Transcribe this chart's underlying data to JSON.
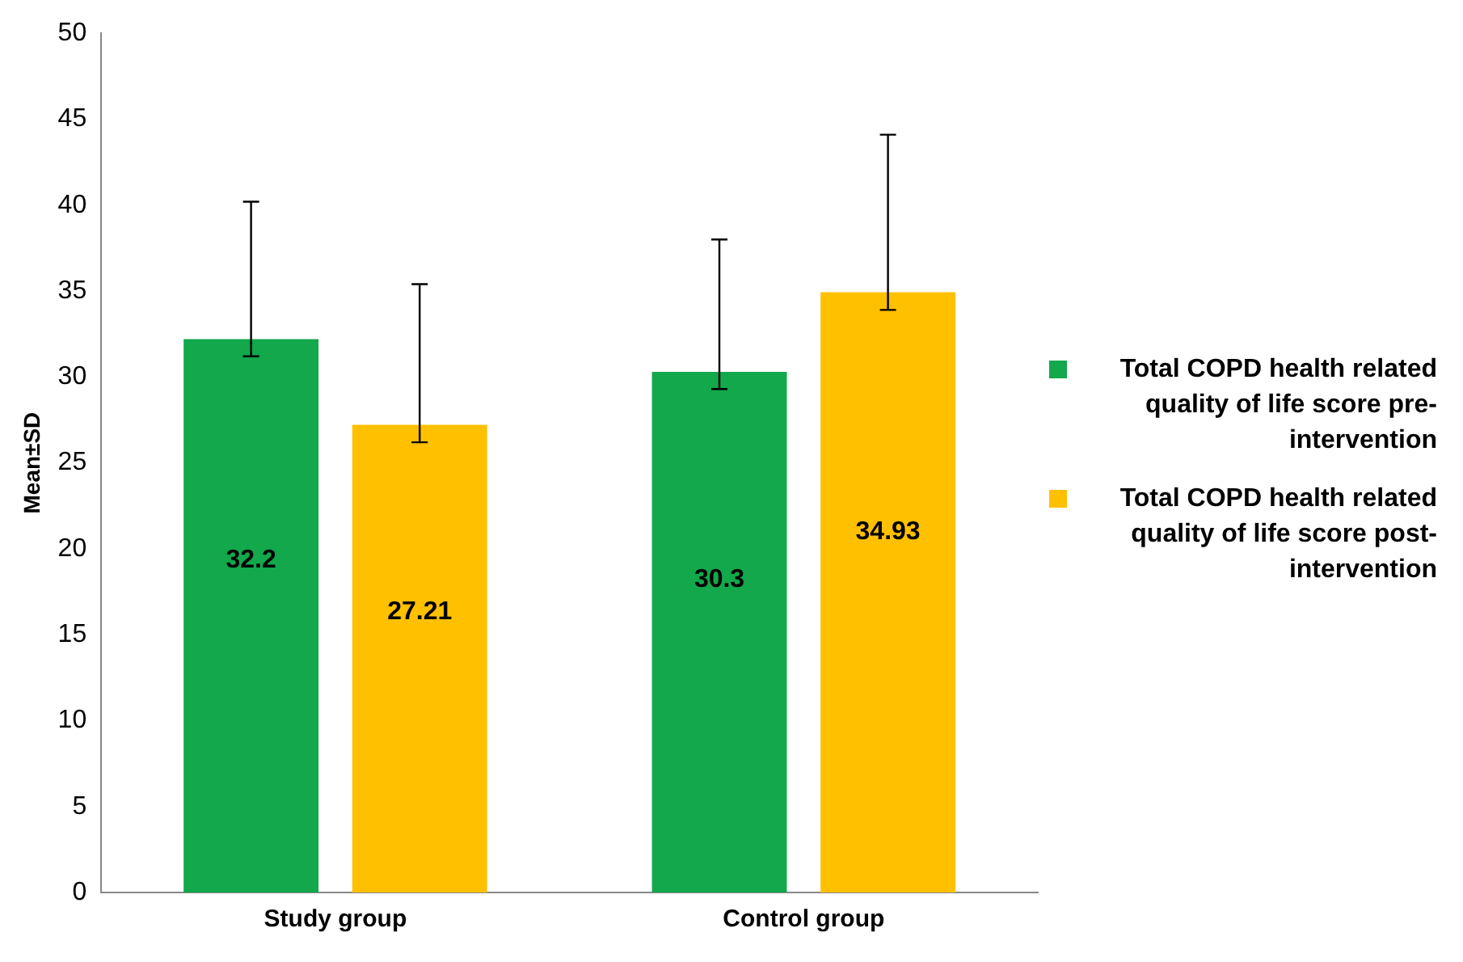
{
  "chart_data": {
    "type": "bar",
    "ylabel": "Mean±SD",
    "categories": [
      "Study group",
      "Control group"
    ],
    "series": [
      {
        "name": "Total COPD health related quality of life score pre-intervention",
        "color": "#12a84b",
        "values": [
          32.2,
          30.3
        ],
        "errors": [
          [
            31.2,
            40.2
          ],
          [
            29.3,
            38.0
          ]
        ]
      },
      {
        "name": "Total COPD health related quality of life score post-intervention",
        "color": "#ffc000",
        "values": [
          27.21,
          34.93
        ],
        "errors": [
          [
            26.2,
            35.4
          ],
          [
            33.9,
            44.1
          ]
        ]
      }
    ],
    "ylim": [
      0,
      50
    ],
    "yticks": [
      0,
      5,
      10,
      15,
      20,
      25,
      30,
      35,
      40,
      45,
      50
    ],
    "grid": false,
    "legend": "right",
    "data_labels": true
  }
}
